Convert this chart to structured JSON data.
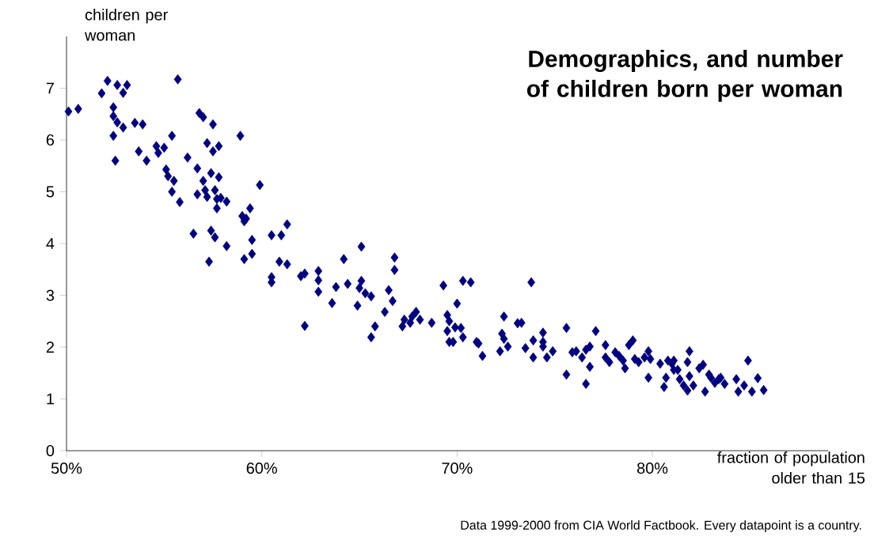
{
  "chart_data": {
    "type": "scatter",
    "title": "Demographics, and number of children born per woman",
    "xlabel": "fraction of population older than 15",
    "ylabel": "children per woman",
    "annotations": [
      "Data 1999-2000 from CIA World Factbook. Every datapoint is a country."
    ],
    "color": "#000080",
    "marker": "diamond",
    "xlim": [
      50,
      89
    ],
    "ylim": [
      0,
      8
    ],
    "xticks": [
      {
        "value": 50,
        "label": "50%"
      },
      {
        "value": 60,
        "label": "60%"
      },
      {
        "value": 70,
        "label": "70%"
      },
      {
        "value": 80,
        "label": "80%"
      }
    ],
    "yticks": [
      0,
      1,
      2,
      3,
      4,
      5,
      6,
      7
    ],
    "x": [
      50.1,
      50.6,
      51.8,
      52.1,
      52.6,
      52.9,
      53.1,
      52.4,
      52.4,
      52.6,
      52.9,
      52.4,
      52.5,
      53.5,
      53.9,
      53.7,
      54.1,
      54.6,
      54.7,
      55.0,
      55.1,
      55.2,
      55.4,
      55.5,
      55.4,
      55.7,
      55.8,
      56.2,
      56.5,
      56.7,
      56.7,
      56.8,
      57.0,
      57.5,
      57.0,
      57.2,
      57.5,
      57.8,
      57.4,
      57.8,
      57.1,
      57.2,
      57.6,
      57.7,
      57.9,
      58.2,
      57.7,
      57.4,
      57.6,
      57.3,
      58.2,
      58.9,
      59.0,
      59.1,
      59.2,
      59.4,
      59.9,
      59.5,
      59.1,
      59.5,
      60.5,
      61.0,
      61.3,
      60.5,
      60.5,
      60.9,
      61.3,
      62.0,
      62.2,
      62.9,
      62.9,
      62.9,
      62.2,
      63.6,
      63.8,
      64.2,
      64.4,
      64.9,
      65.0,
      65.1,
      65.1,
      65.3,
      65.6,
      65.6,
      65.8,
      66.3,
      66.5,
      66.7,
      66.8,
      66.8,
      67.2,
      67.3,
      67.6,
      67.7,
      67.9,
      68.1,
      68.7,
      69.3,
      69.5,
      69.5,
      69.6,
      69.6,
      69.8,
      69.9,
      70.0,
      70.2,
      70.3,
      70.3,
      70.7,
      71.0,
      71.1,
      71.3,
      72.2,
      72.3,
      72.4,
      72.4,
      72.6,
      73.1,
      73.3,
      73.5,
      73.8,
      73.9,
      73.9,
      74.4,
      74.4,
      74.6,
      74.9,
      75.6,
      75.6,
      74.4,
      75.9,
      76.1,
      76.4,
      76.6,
      76.8,
      76.6,
      76.8,
      77.1,
      77.6,
      77.6,
      77.8,
      78.1,
      78.3,
      78.5,
      78.6,
      78.8,
      79.0,
      79.1,
      79.3,
      79.6,
      79.8,
      79.8,
      79.9,
      80.4,
      80.6,
      80.7,
      80.8,
      81.0,
      81.1,
      81.1,
      81.3,
      81.4,
      81.6,
      81.8,
      81.8,
      81.9,
      81.9,
      82.1,
      82.4,
      82.6,
      82.7,
      82.9,
      83.0,
      83.2,
      83.4,
      83.5,
      83.7,
      84.3,
      84.4,
      84.7,
      84.9,
      85.1,
      85.4,
      85.7
    ],
    "values": [
      6.55,
      6.6,
      6.9,
      7.14,
      7.06,
      6.91,
      7.06,
      6.63,
      6.46,
      6.34,
      6.24,
      6.08,
      5.6,
      6.33,
      6.3,
      5.78,
      5.6,
      5.88,
      5.75,
      5.85,
      5.43,
      5.3,
      5.0,
      5.21,
      6.08,
      7.17,
      4.8,
      5.66,
      4.19,
      5.45,
      4.95,
      6.52,
      6.44,
      6.3,
      5.21,
      5.94,
      5.78,
      5.88,
      5.36,
      5.28,
      5.03,
      4.9,
      5.03,
      4.86,
      4.88,
      4.81,
      4.68,
      4.25,
      4.12,
      3.65,
      3.95,
      6.08,
      4.53,
      4.43,
      4.48,
      4.68,
      5.13,
      4.07,
      3.7,
      3.8,
      4.16,
      4.16,
      4.37,
      3.35,
      3.25,
      3.65,
      3.6,
      3.37,
      3.42,
      3.47,
      3.29,
      3.07,
      2.41,
      2.85,
      3.16,
      3.7,
      3.22,
      2.8,
      3.14,
      3.28,
      3.94,
      3.04,
      2.98,
      2.19,
      2.4,
      2.68,
      3.1,
      2.89,
      3.73,
      3.49,
      2.4,
      2.53,
      2.47,
      2.59,
      2.68,
      2.53,
      2.47,
      3.19,
      2.62,
      2.31,
      2.5,
      2.1,
      2.1,
      2.38,
      2.84,
      2.37,
      3.28,
      2.19,
      3.25,
      2.1,
      2.07,
      1.83,
      1.92,
      2.26,
      2.59,
      2.16,
      2.01,
      2.46,
      2.47,
      1.98,
      3.25,
      2.13,
      1.8,
      2.28,
      2.01,
      1.8,
      1.92,
      2.37,
      1.47,
      2.1,
      1.9,
      1.92,
      1.8,
      1.95,
      2.01,
      1.29,
      1.62,
      2.31,
      2.04,
      1.8,
      1.71,
      1.9,
      1.83,
      1.74,
      1.59,
      2.04,
      2.13,
      1.77,
      1.71,
      1.8,
      1.92,
      1.41,
      1.77,
      1.68,
      1.23,
      1.41,
      1.74,
      1.68,
      1.74,
      1.56,
      1.56,
      1.38,
      1.26,
      1.16,
      1.71,
      1.92,
      1.44,
      1.26,
      1.59,
      1.66,
      1.14,
      1.47,
      1.41,
      1.31,
      1.38,
      1.41,
      1.29,
      1.38,
      1.14,
      1.26,
      1.74,
      1.14,
      1.4,
      1.17
    ]
  }
}
